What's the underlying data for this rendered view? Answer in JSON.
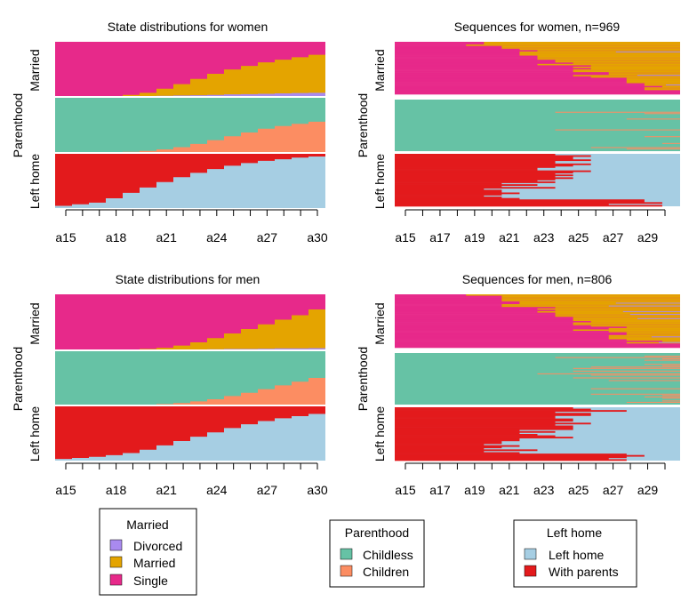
{
  "colors": {
    "divorced": "#A98AEF",
    "married": "#E4A400",
    "single": "#E7298A",
    "childless": "#66C2A5",
    "children": "#FC8D62",
    "left_home": "#A6CEE3",
    "with_parents": "#E31A1C"
  },
  "chart_data": [
    {
      "type": "area",
      "title": "State distributions for women",
      "channels": [
        "Married",
        "Parenthood",
        "Left home"
      ],
      "x": [
        "a15",
        "a16",
        "a17",
        "a18",
        "a19",
        "a20",
        "a21",
        "a22",
        "a23",
        "a24",
        "a25",
        "a26",
        "a27",
        "a28",
        "a29",
        "a30"
      ],
      "x_tick_labels": [
        "a15",
        "a18",
        "a21",
        "a24",
        "a27",
        "a30"
      ],
      "series": {
        "Married": {
          "Divorced": [
            0,
            0,
            0,
            0,
            0,
            0,
            0.005,
            0.01,
            0.015,
            0.02,
            0.03,
            0.035,
            0.04,
            0.05,
            0.055,
            0.06
          ],
          "Married": [
            0,
            0,
            0,
            0,
            0.02,
            0.06,
            0.13,
            0.21,
            0.3,
            0.39,
            0.46,
            0.52,
            0.58,
            0.62,
            0.66,
            0.7
          ]
        },
        "Parenthood": {
          "Children": [
            0,
            0,
            0,
            0,
            0.005,
            0.02,
            0.05,
            0.09,
            0.15,
            0.22,
            0.29,
            0.36,
            0.43,
            0.48,
            0.52,
            0.56
          ]
        },
        "Left home": {
          "Left home": [
            0.04,
            0.07,
            0.1,
            0.18,
            0.28,
            0.38,
            0.48,
            0.57,
            0.65,
            0.72,
            0.78,
            0.83,
            0.87,
            0.9,
            0.93,
            0.95
          ]
        }
      }
    },
    {
      "type": "heatmap",
      "title": "Sequences for women, n=969",
      "channels": [
        "Married",
        "Parenthood",
        "Left home"
      ],
      "x_tick_labels": [
        "a15",
        "a17",
        "a19",
        "a21",
        "a23",
        "a25",
        "a27",
        "a29"
      ],
      "n": 969
    },
    {
      "type": "area",
      "title": "State distributions for men",
      "channels": [
        "Married",
        "Parenthood",
        "Left home"
      ],
      "x": [
        "a15",
        "a16",
        "a17",
        "a18",
        "a19",
        "a20",
        "a21",
        "a22",
        "a23",
        "a24",
        "a25",
        "a26",
        "a27",
        "a28",
        "a29",
        "a30"
      ],
      "x_tick_labels": [
        "a15",
        "a18",
        "a21",
        "a24",
        "a27",
        "a30"
      ],
      "series": {
        "Married": {
          "Divorced": [
            0,
            0,
            0,
            0,
            0,
            0,
            0,
            0,
            0,
            0.005,
            0.01,
            0.01,
            0.015,
            0.02,
            0.02,
            0.025
          ],
          "Married": [
            0,
            0,
            0,
            0,
            0,
            0.01,
            0.03,
            0.07,
            0.13,
            0.2,
            0.28,
            0.36,
            0.44,
            0.52,
            0.6,
            0.7
          ]
        },
        "Parenthood": {
          "Children": [
            0,
            0,
            0,
            0,
            0,
            0,
            0.01,
            0.03,
            0.06,
            0.1,
            0.16,
            0.22,
            0.29,
            0.36,
            0.43,
            0.5
          ]
        },
        "Left home": {
          "Left home": [
            0.03,
            0.05,
            0.07,
            0.1,
            0.14,
            0.2,
            0.28,
            0.36,
            0.44,
            0.52,
            0.6,
            0.67,
            0.73,
            0.78,
            0.82,
            0.86
          ]
        }
      }
    },
    {
      "type": "heatmap",
      "title": "Sequences for men, n=806",
      "channels": [
        "Married",
        "Parenthood",
        "Left home"
      ],
      "x_tick_labels": [
        "a15",
        "a17",
        "a19",
        "a21",
        "a23",
        "a25",
        "a27",
        "a29"
      ],
      "n": 806
    }
  ],
  "legends": [
    {
      "title": "Married",
      "items": [
        {
          "label": "Divorced",
          "color_key": "divorced"
        },
        {
          "label": "Married",
          "color_key": "married"
        },
        {
          "label": "Single",
          "color_key": "single"
        }
      ]
    },
    {
      "title": "Parenthood",
      "items": [
        {
          "label": "Childless",
          "color_key": "childless"
        },
        {
          "label": "Children",
          "color_key": "children"
        }
      ]
    },
    {
      "title": "Left home",
      "items": [
        {
          "label": "Left home",
          "color_key": "left_home"
        },
        {
          "label": "With parents",
          "color_key": "with_parents"
        }
      ]
    }
  ]
}
